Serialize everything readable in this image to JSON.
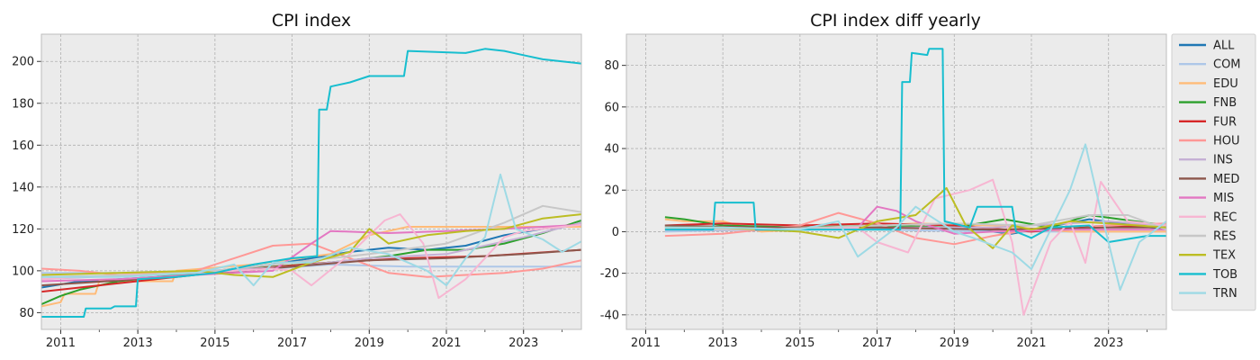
{
  "chart_data": [
    {
      "type": "line",
      "title": "CPI index",
      "xlabel": "",
      "ylabel": "",
      "x_ticks": [
        "2011",
        "2013",
        "2015",
        "2017",
        "2019",
        "2021",
        "2023"
      ],
      "y_ticks": [
        80,
        100,
        120,
        140,
        160,
        180,
        200
      ],
      "xlim": [
        2010.5,
        2024.5
      ],
      "ylim": [
        72,
        213
      ],
      "grid": true,
      "series": [
        {
          "name": "ALL",
          "color": "#1f77b4",
          "x": [
            2010.5,
            2011.5,
            2012.5,
            2013.5,
            2014.5,
            2015.5,
            2016.5,
            2017.5,
            2018.5,
            2019.5,
            2020.5,
            2021.5,
            2022.5,
            2023.5,
            2024.5
          ],
          "y": [
            92,
            95,
            96,
            97,
            99,
            101,
            103,
            106,
            109,
            111,
            110,
            112,
            117,
            120,
            122
          ]
        },
        {
          "name": "COM",
          "color": "#aec7e8",
          "x": [
            2010.5,
            2012.5,
            2014.5,
            2016.5,
            2018.0,
            2020.0,
            2022.0,
            2024.5
          ],
          "y": [
            99,
            99,
            100,
            101,
            103,
            102,
            102,
            102
          ]
        },
        {
          "name": "EDU",
          "color": "#ffbb78",
          "x": [
            2010.5,
            2011.0,
            2011.1,
            2011.9,
            2012.0,
            2013.9,
            2014.0,
            2016.0,
            2018.0,
            2019.0,
            2020.0,
            2022.0,
            2024.5
          ],
          "y": [
            83,
            85,
            89,
            89,
            95,
            95,
            100,
            103,
            108,
            117,
            121,
            121,
            121
          ]
        },
        {
          "name": "FNB",
          "color": "#2ca02c",
          "x": [
            2010.5,
            2011.0,
            2011.5,
            2012.5,
            2014.5,
            2016.5,
            2018.0,
            2019.5,
            2020.5,
            2021.5,
            2022.5,
            2023.5,
            2024.5
          ],
          "y": [
            84,
            88,
            91,
            95,
            99,
            102,
            104,
            107,
            110,
            110,
            113,
            118,
            124
          ]
        },
        {
          "name": "FUR",
          "color": "#d62728",
          "x": [
            2010.5,
            2012.0,
            2014.0,
            2016.0,
            2018.0,
            2020.0,
            2022.0,
            2024.5
          ],
          "y": [
            90,
            93,
            97,
            101,
            104,
            106,
            107,
            110
          ]
        },
        {
          "name": "HOU",
          "color": "#ff9896",
          "x": [
            2010.5,
            2011.5,
            2012.5,
            2014.5,
            2015.5,
            2016.5,
            2017.5,
            2018.5,
            2019.5,
            2020.5,
            2021.5,
            2022.5,
            2023.5,
            2024.5
          ],
          "y": [
            101,
            100,
            98,
            100,
            106,
            112,
            113,
            106,
            99,
            97,
            98,
            99,
            101,
            105
          ]
        },
        {
          "name": "INS",
          "color": "#c5b0d5",
          "x": [
            2010.5,
            2013.0,
            2015.0,
            2017.0,
            2019.0,
            2021.0,
            2023.0,
            2024.5
          ],
          "y": [
            96,
            98,
            100,
            102,
            106,
            108,
            116,
            123
          ]
        },
        {
          "name": "MED",
          "color": "#8c564b",
          "x": [
            2010.5,
            2013.0,
            2015.0,
            2017.0,
            2019.0,
            2021.0,
            2023.0,
            2024.5
          ],
          "y": [
            93,
            96,
            99,
            102,
            105,
            106,
            108,
            110
          ]
        },
        {
          "name": "MIS",
          "color": "#e377c2",
          "x": [
            2010.5,
            2012.5,
            2014.5,
            2016.5,
            2017.5,
            2018.0,
            2019.5,
            2021.0,
            2022.5,
            2024.5
          ],
          "y": [
            95,
            96,
            98,
            100,
            113,
            119,
            118,
            119,
            120,
            122
          ]
        },
        {
          "name": "REC",
          "color": "#f7b6d2",
          "x": [
            2010.5,
            2012.5,
            2014.5,
            2016.5,
            2017.0,
            2017.5,
            2018.5,
            2019.4,
            2019.8,
            2020.4,
            2020.8,
            2021.5,
            2022.5,
            2023.0,
            2023.5,
            2024.5
          ],
          "y": [
            96,
            98,
            99,
            101,
            100,
            93,
            108,
            124,
            127,
            113,
            87,
            96,
            116,
            119,
            120,
            122
          ]
        },
        {
          "name": "RES",
          "color": "#c7c7c7",
          "x": [
            2010.5,
            2013.0,
            2015.0,
            2017.0,
            2019.0,
            2021.0,
            2022.5,
            2023.5,
            2024.5
          ],
          "y": [
            97,
            98,
            100,
            104,
            108,
            113,
            123,
            131,
            128
          ]
        },
        {
          "name": "TEX",
          "color": "#bcbd22",
          "x": [
            2010.5,
            2012.5,
            2014.5,
            2015.5,
            2016.5,
            2017.5,
            2018.5,
            2019.0,
            2019.5,
            2020.5,
            2021.5,
            2022.5,
            2023.5,
            2024.5
          ],
          "y": [
            98,
            99,
            100,
            98,
            97,
            104,
            109,
            120,
            113,
            117,
            119,
            120,
            125,
            127
          ]
        },
        {
          "name": "TOB",
          "color": "#17becf",
          "x": [
            2010.5,
            2011.6,
            2011.65,
            2012.3,
            2012.4,
            2012.95,
            2013.0,
            2014.0,
            2015.0,
            2016.0,
            2017.0,
            2017.65,
            2017.7,
            2017.9,
            2018.0,
            2018.5,
            2019.0,
            2019.9,
            2020.0,
            2021.5,
            2022.0,
            2022.5,
            2023.0,
            2023.5,
            2024.0,
            2024.5
          ],
          "y": [
            78,
            78,
            82,
            82,
            83,
            83,
            96,
            97,
            99,
            103,
            106,
            107,
            177,
            177,
            188,
            190,
            193,
            193,
            205,
            204,
            206,
            205,
            203,
            201,
            200,
            199
          ]
        },
        {
          "name": "TRN",
          "color": "#9edae5",
          "x": [
            2010.5,
            2012.5,
            2014.5,
            2015.5,
            2016.0,
            2016.5,
            2017.5,
            2018.5,
            2019.5,
            2020.5,
            2021.0,
            2021.5,
            2022.0,
            2022.4,
            2022.8,
            2023.5,
            2024.0,
            2024.5
          ],
          "y": [
            97,
            97,
            99,
            103,
            93,
            104,
            104,
            111,
            108,
            100,
            93,
            106,
            116,
            146,
            120,
            115,
            109,
            114
          ]
        }
      ]
    },
    {
      "type": "line",
      "title": "CPI index diff yearly",
      "xlabel": "",
      "ylabel": "",
      "x_ticks": [
        "2011",
        "2013",
        "2015",
        "2017",
        "2019",
        "2021",
        "2023"
      ],
      "y_ticks": [
        -40,
        -20,
        0,
        20,
        40,
        60,
        80
      ],
      "xlim": [
        2010.5,
        2024.5
      ],
      "ylim": [
        -47,
        95
      ],
      "grid": true,
      "legend": "right",
      "series": [
        {
          "name": "ALL",
          "color": "#1f77b4",
          "x": [
            2011.5,
            2013.0,
            2015.0,
            2017.0,
            2019.0,
            2020.5,
            2022.5,
            2024.5
          ],
          "y": [
            3,
            2,
            1,
            2,
            2,
            -1,
            6,
            1
          ]
        },
        {
          "name": "COM",
          "color": "#aec7e8",
          "x": [
            2011.5,
            2014.0,
            2017.0,
            2020.0,
            2023.0,
            2024.5
          ],
          "y": [
            0,
            1,
            1,
            0,
            0,
            0
          ]
        },
        {
          "name": "EDU",
          "color": "#ffbb78",
          "x": [
            2011.5,
            2012.0,
            2013.0,
            2014.0,
            2016.0,
            2018.0,
            2020.0,
            2022.0,
            2024.5
          ],
          "y": [
            6,
            5,
            5,
            0,
            2,
            4,
            3,
            0,
            0
          ]
        },
        {
          "name": "FNB",
          "color": "#2ca02c",
          "x": [
            2011.5,
            2012.0,
            2013.0,
            2015.0,
            2017.0,
            2019.0,
            2020.3,
            2021.5,
            2022.5,
            2024.5
          ],
          "y": [
            7,
            6,
            3,
            2,
            3,
            2,
            6,
            2,
            8,
            3
          ]
        },
        {
          "name": "FUR",
          "color": "#d62728",
          "x": [
            2011.5,
            2013.0,
            2015.0,
            2017.0,
            2019.0,
            2021.0,
            2023.0,
            2024.5
          ],
          "y": [
            3,
            4,
            3,
            4,
            3,
            0,
            3,
            2
          ]
        },
        {
          "name": "HOU",
          "color": "#ff9896",
          "x": [
            2011.5,
            2013.0,
            2015.0,
            2016.0,
            2017.0,
            2018.0,
            2019.0,
            2020.0,
            2021.0,
            2022.0,
            2023.0,
            2024.5
          ],
          "y": [
            -2,
            -1,
            3,
            9,
            4,
            -3,
            -6,
            -2,
            1,
            1,
            3,
            4
          ]
        },
        {
          "name": "INS",
          "color": "#c5b0d5",
          "x": [
            2011.5,
            2014.0,
            2017.0,
            2020.0,
            2023.0,
            2024.5
          ],
          "y": [
            1,
            1,
            2,
            2,
            5,
            3
          ]
        },
        {
          "name": "MED",
          "color": "#8c564b",
          "x": [
            2011.5,
            2014.0,
            2017.0,
            2020.0,
            2023.0,
            2024.5
          ],
          "y": [
            3,
            2,
            2,
            1,
            2,
            2
          ]
        },
        {
          "name": "MIS",
          "color": "#e377c2",
          "x": [
            2011.5,
            2014.0,
            2016.5,
            2017.0,
            2017.5,
            2018.0,
            2019.0,
            2020.0,
            2022.0,
            2024.5
          ],
          "y": [
            1,
            1,
            2,
            12,
            10,
            5,
            -1,
            0,
            1,
            1
          ]
        },
        {
          "name": "REC",
          "color": "#f7b6d2",
          "x": [
            2011.5,
            2014.0,
            2016.5,
            2017.0,
            2017.8,
            2018.5,
            2019.4,
            2020.0,
            2020.5,
            2020.8,
            2021.5,
            2022.0,
            2022.4,
            2022.8,
            2023.5,
            2024.5
          ],
          "y": [
            2,
            1,
            2,
            -5,
            -10,
            16,
            20,
            25,
            -5,
            -40,
            -5,
            5,
            -15,
            24,
            5,
            3
          ]
        },
        {
          "name": "RES",
          "color": "#c7c7c7",
          "x": [
            2011.5,
            2014.0,
            2017.0,
            2019.0,
            2021.0,
            2022.5,
            2023.5,
            2024.5
          ],
          "y": [
            1,
            1,
            3,
            4,
            3,
            8,
            8,
            1
          ]
        },
        {
          "name": "TEX",
          "color": "#bcbd22",
          "x": [
            2011.5,
            2013.0,
            2015.0,
            2016.0,
            2017.0,
            2018.0,
            2018.8,
            2019.3,
            2020.0,
            2020.5,
            2021.0,
            2022.0,
            2023.0,
            2024.5
          ],
          "y": [
            2,
            2,
            0,
            -3,
            5,
            8,
            21,
            3,
            -8,
            3,
            1,
            5,
            4,
            2
          ]
        },
        {
          "name": "TOB",
          "color": "#17becf",
          "x": [
            2011.5,
            2012.75,
            2012.8,
            2013.8,
            2013.85,
            2016.0,
            2017.6,
            2017.65,
            2017.85,
            2017.9,
            2018.3,
            2018.35,
            2018.7,
            2018.75,
            2019.4,
            2019.6,
            2020.5,
            2020.6,
            2021.0,
            2021.5,
            2022.5,
            2023.0,
            2024.0,
            2024.5
          ],
          "y": [
            1,
            1,
            14,
            14,
            1,
            1,
            1,
            72,
            72,
            86,
            85,
            88,
            88,
            5,
            2,
            12,
            12,
            0,
            -3,
            2,
            3,
            -5,
            -2,
            -2
          ]
        },
        {
          "name": "TRN",
          "color": "#9edae5",
          "x": [
            2011.5,
            2013.0,
            2015.0,
            2016.0,
            2016.5,
            2017.5,
            2018.0,
            2019.0,
            2019.5,
            2020.5,
            2021.0,
            2022.0,
            2022.4,
            2022.8,
            2023.3,
            2023.8,
            2024.5
          ],
          "y": [
            2,
            2,
            1,
            5,
            -12,
            2,
            12,
            0,
            -3,
            -10,
            -18,
            20,
            42,
            10,
            -28,
            -5,
            5
          ]
        }
      ]
    }
  ]
}
